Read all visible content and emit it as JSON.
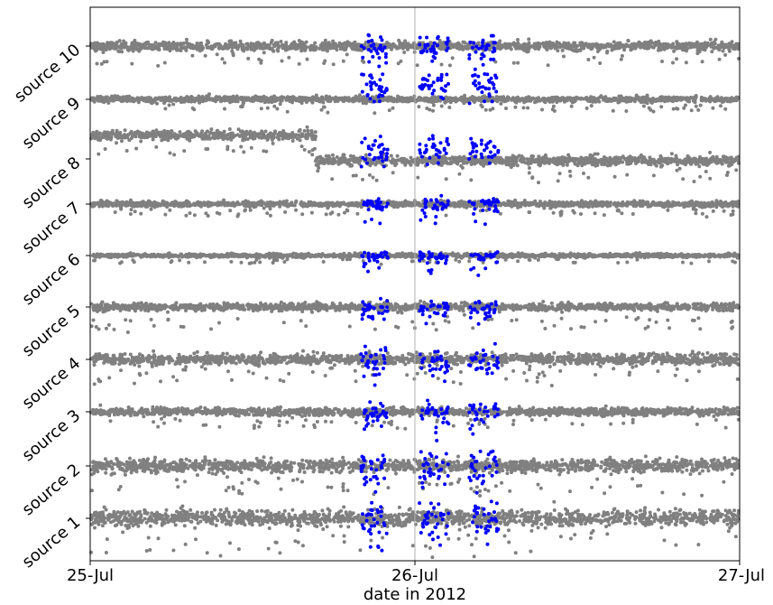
{
  "chart_data": {
    "type": "scatter",
    "title": "",
    "xlabel": "date in 2012",
    "ylabel": "",
    "x_range": [
      "2012-07-25",
      "2012-07-27"
    ],
    "x_ticks": [
      {
        "date": "2012-07-25",
        "label": "25-Jul"
      },
      {
        "date": "2012-07-26",
        "label": "26-Jul"
      },
      {
        "date": "2012-07-27",
        "label": "27-Jul"
      }
    ],
    "vertical_reference_line": "2012-07-26",
    "grid": false,
    "legend": "none",
    "series_colors": {
      "normal": "#808080",
      "highlight": "#0000ff"
    },
    "highlight_windows": [
      [
        "2012-07-25T20:00",
        "2012-07-25T22:00"
      ],
      [
        "2012-07-26T00:20",
        "2012-07-26T02:30"
      ],
      [
        "2012-07-26T04:00",
        "2012-07-26T06:10"
      ]
    ],
    "sources": [
      {
        "label": "source 1"
      },
      {
        "label": "source 2"
      },
      {
        "label": "source 3"
      },
      {
        "label": "source 4"
      },
      {
        "label": "source 5"
      },
      {
        "label": "source 6"
      },
      {
        "label": "source 7"
      },
      {
        "label": "source 8"
      },
      {
        "label": "source 9"
      },
      {
        "label": "source 10"
      }
    ]
  }
}
